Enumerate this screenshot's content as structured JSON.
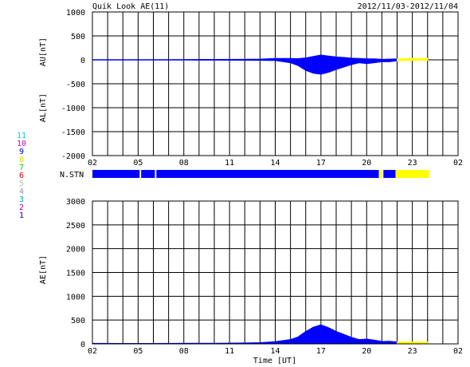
{
  "header": {
    "title": "Quik Look AE(11)",
    "date_range": "2012/11/03-2012/11/04"
  },
  "labels": {
    "au_axis": "AU[nT]",
    "al_axis": "AL[nT]",
    "ae_axis": "AE[nT]",
    "station_row": "N.STN",
    "time_axis": "Time [UT]"
  },
  "station_legend": [
    {
      "label": "11",
      "color": "#00cccc"
    },
    {
      "label": "10",
      "color": "#cc00cc"
    },
    {
      "label": "9",
      "color": "#0000cc"
    },
    {
      "label": "8",
      "color": "#dddd00"
    },
    {
      "label": "7",
      "color": "#00cc00"
    },
    {
      "label": "6",
      "color": "#dd0000"
    },
    {
      "label": "5",
      "color": "#bbbbbb"
    },
    {
      "label": "4",
      "color": "#999999"
    },
    {
      "label": "3",
      "color": "#00aaaa"
    },
    {
      "label": "2",
      "color": "#aa00aa"
    },
    {
      "label": "1",
      "color": "#0000aa"
    }
  ],
  "colors": {
    "final": "#0000ff",
    "provisional": "#ffff00"
  },
  "chart_data": [
    {
      "type": "area",
      "panel": "AU/AL",
      "x_ticks": [
        "02",
        "05",
        "08",
        "11",
        "14",
        "17",
        "20",
        "23",
        "02"
      ],
      "xlim_hours": [
        2,
        26
      ],
      "y_ticks": [
        "1000",
        "500",
        "0",
        "-500",
        "-1000",
        "-1500",
        "-2000"
      ],
      "ylim": [
        -2000,
        1000
      ],
      "grid": true,
      "series": [
        {
          "quantity": "AU",
          "hours": [
            2,
            4,
            6,
            8,
            10,
            12,
            13,
            14,
            15,
            15.5,
            16,
            16.5,
            17,
            17.5,
            18,
            18.5,
            19,
            19.5,
            20,
            20.5,
            21,
            21.5,
            22,
            23,
            24
          ],
          "values": [
            5,
            3,
            4,
            6,
            8,
            10,
            15,
            30,
            30,
            25,
            40,
            70,
            100,
            80,
            60,
            50,
            35,
            30,
            20,
            20,
            10,
            15,
            20,
            30,
            30
          ]
        },
        {
          "quantity": "AL",
          "hours": [
            2,
            4,
            6,
            8,
            10,
            12,
            13,
            14,
            15,
            15.5,
            16,
            16.5,
            17,
            17.5,
            18,
            18.5,
            19,
            19.5,
            20,
            20.5,
            21,
            21.5,
            22,
            23,
            24
          ],
          "values": [
            -5,
            -5,
            -5,
            -5,
            -6,
            -8,
            -10,
            -15,
            -60,
            -120,
            -220,
            -280,
            -300,
            -260,
            -200,
            -150,
            -100,
            -60,
            -80,
            -60,
            -40,
            -40,
            -20,
            -10,
            -10
          ]
        }
      ],
      "provisional_from_hour": 22
    },
    {
      "type": "area",
      "panel": "AE",
      "x_ticks": [
        "02",
        "05",
        "08",
        "11",
        "14",
        "17",
        "20",
        "23",
        "02"
      ],
      "xlim_hours": [
        2,
        26
      ],
      "y_ticks": [
        "3000",
        "2500",
        "2000",
        "1500",
        "1000",
        "500",
        "0"
      ],
      "ylim": [
        0,
        3000
      ],
      "grid": true,
      "series": [
        {
          "quantity": "AE",
          "hours": [
            2,
            4,
            6,
            8,
            10,
            12,
            13,
            14,
            15,
            15.5,
            16,
            16.5,
            17,
            17.5,
            18,
            18.5,
            19,
            19.5,
            20,
            20.5,
            21,
            21.5,
            22,
            23,
            24
          ],
          "values": [
            10,
            8,
            9,
            11,
            14,
            18,
            25,
            45,
            90,
            145,
            260,
            350,
            400,
            340,
            260,
            200,
            135,
            90,
            100,
            80,
            50,
            55,
            40,
            40,
            40
          ]
        }
      ],
      "provisional_from_hour": 22
    }
  ],
  "station_bar": [
    {
      "from_hour": 2,
      "to_hour": 5.1,
      "color": "#0000ff"
    },
    {
      "from_hour": 5.2,
      "to_hour": 6.1,
      "color": "#0000ff"
    },
    {
      "from_hour": 6.2,
      "to_hour": 20.8,
      "color": "#0000ff"
    },
    {
      "from_hour": 20.8,
      "to_hour": 21.0,
      "color": "#ffff00"
    },
    {
      "from_hour": 21.1,
      "to_hour": 21.9,
      "color": "#0000ff"
    },
    {
      "from_hour": 21.9,
      "to_hour": 24.1,
      "color": "#ffff00"
    }
  ]
}
